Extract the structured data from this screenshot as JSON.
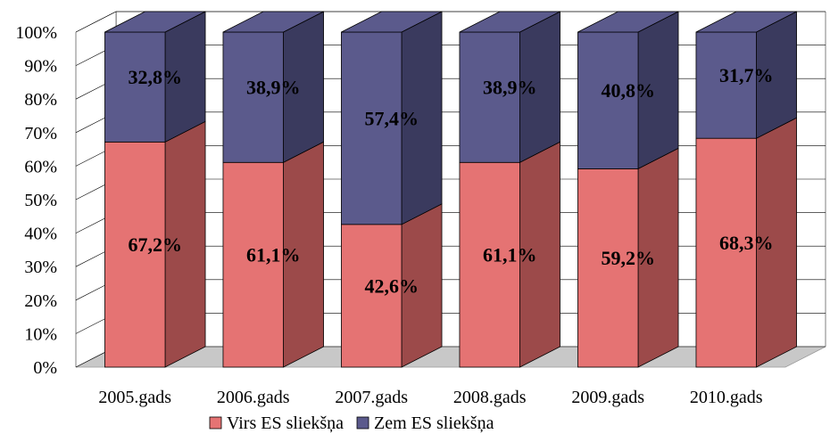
{
  "chart_data": {
    "type": "bar",
    "stacked": true,
    "percent_stacked": true,
    "three_d": true,
    "categories": [
      "2005.gads",
      "2006.gads",
      "2007.gads",
      "2008.gads",
      "2009.gads",
      "2010.gads"
    ],
    "series": [
      {
        "name": "Virs ES sliekšņa",
        "color": "#e57373",
        "side_color": "#9c4a4a",
        "values": [
          67.2,
          61.1,
          42.6,
          61.1,
          59.2,
          68.3
        ],
        "labels": [
          "67,2%",
          "61,1%",
          "42,6%",
          "61,1%",
          "59,2%",
          "68,3%"
        ]
      },
      {
        "name": "Zem ES sliekšņa",
        "color": "#5b5a8c",
        "side_color": "#3a3a5e",
        "values": [
          32.8,
          38.9,
          57.4,
          38.9,
          40.8,
          31.7
        ],
        "labels": [
          "32,8%",
          "38,9%",
          "57,4%",
          "38,9%",
          "40,8%",
          "31,7%"
        ]
      }
    ],
    "y_ticks": [
      "0%",
      "10%",
      "20%",
      "30%",
      "40%",
      "50%",
      "60%",
      "70%",
      "80%",
      "90%",
      "100%"
    ],
    "ylim": [
      0,
      100
    ],
    "legend_position": "bottom",
    "grid": true,
    "wall_color": "#ffffff",
    "floor_color": "#c8c8c8"
  }
}
